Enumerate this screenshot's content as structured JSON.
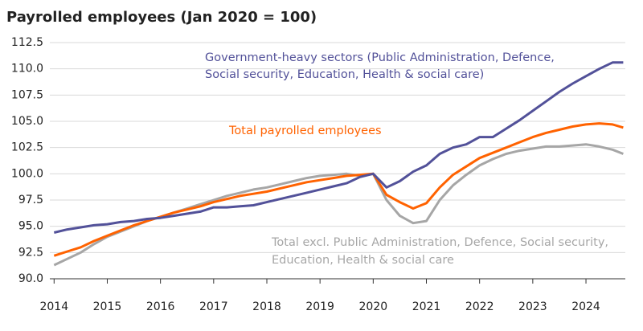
{
  "chart_data": {
    "type": "line",
    "title": "Payrolled employees (Jan 2020 = 100)",
    "x": [
      2014,
      2014.25,
      2014.5,
      2014.75,
      2015,
      2015.25,
      2015.5,
      2015.75,
      2016,
      2016.25,
      2016.5,
      2016.75,
      2017,
      2017.25,
      2017.5,
      2017.75,
      2018,
      2018.25,
      2018.5,
      2018.75,
      2019,
      2019.25,
      2019.5,
      2019.75,
      2020,
      2020.25,
      2020.5,
      2020.75,
      2021,
      2021.25,
      2021.5,
      2021.75,
      2022,
      2022.25,
      2022.5,
      2022.75,
      2023,
      2023.25,
      2023.5,
      2023.75,
      2024,
      2024.25,
      2024.5,
      2024.7
    ],
    "series": [
      {
        "name": [
          "Total excl. Public Administration, Defence, Social security,",
          "Education, Health & social care"
        ],
        "color": "#a6a6a6",
        "values": [
          91.3,
          91.9,
          92.5,
          93.3,
          94.0,
          94.5,
          95.0,
          95.5,
          95.9,
          96.3,
          96.7,
          97.1,
          97.5,
          97.9,
          98.2,
          98.5,
          98.7,
          99.0,
          99.3,
          99.6,
          99.8,
          99.9,
          100.0,
          99.8,
          100.0,
          97.5,
          96.0,
          95.3,
          95.5,
          97.5,
          98.9,
          99.9,
          100.8,
          101.4,
          101.9,
          102.2,
          102.4,
          102.6,
          102.6,
          102.7,
          102.8,
          102.6,
          102.3,
          101.9
        ]
      },
      {
        "name": [
          "Total payrolled employees"
        ],
        "color": "#ff6200",
        "values": [
          92.2,
          92.6,
          93.0,
          93.6,
          94.1,
          94.6,
          95.1,
          95.5,
          95.9,
          96.3,
          96.6,
          96.9,
          97.3,
          97.6,
          97.9,
          98.1,
          98.3,
          98.6,
          98.9,
          99.2,
          99.4,
          99.6,
          99.8,
          99.9,
          100.0,
          98.0,
          97.3,
          96.7,
          97.2,
          98.7,
          99.9,
          100.7,
          101.5,
          102.0,
          102.5,
          103.0,
          103.5,
          103.9,
          104.2,
          104.5,
          104.7,
          104.8,
          104.7,
          104.4
        ]
      },
      {
        "name": [
          "Government-heavy sectors (Public Administration, Defence,",
          "Social security, Education, Health & social care)"
        ],
        "color": "#525199",
        "values": [
          94.4,
          94.7,
          94.9,
          95.1,
          95.2,
          95.4,
          95.5,
          95.7,
          95.8,
          96.0,
          96.2,
          96.4,
          96.8,
          96.8,
          96.9,
          97.0,
          97.3,
          97.6,
          97.9,
          98.2,
          98.5,
          98.8,
          99.1,
          99.7,
          100.0,
          98.7,
          99.3,
          100.2,
          100.8,
          101.9,
          102.5,
          102.8,
          103.5,
          103.5,
          104.3,
          105.1,
          106.0,
          106.9,
          107.8,
          108.6,
          109.3,
          110.0,
          110.6,
          110.6
        ]
      }
    ],
    "xlim": [
      2013.92,
      2024.74
    ],
    "xticks": [
      2014,
      2015,
      2016,
      2017,
      2018,
      2019,
      2020,
      2021,
      2022,
      2023,
      2024
    ],
    "ylim": [
      90,
      112.5
    ],
    "yticks": [
      {
        "value": 90,
        "label": "90.0"
      },
      92.5,
      {
        "value": 95,
        "label": "95.0"
      },
      97.5,
      {
        "value": 100,
        "label": "100.0"
      },
      102.5,
      {
        "value": 105,
        "label": "105.0"
      },
      107.5,
      {
        "value": 110,
        "label": "110.0"
      },
      112.5
    ],
    "grid": true
  }
}
